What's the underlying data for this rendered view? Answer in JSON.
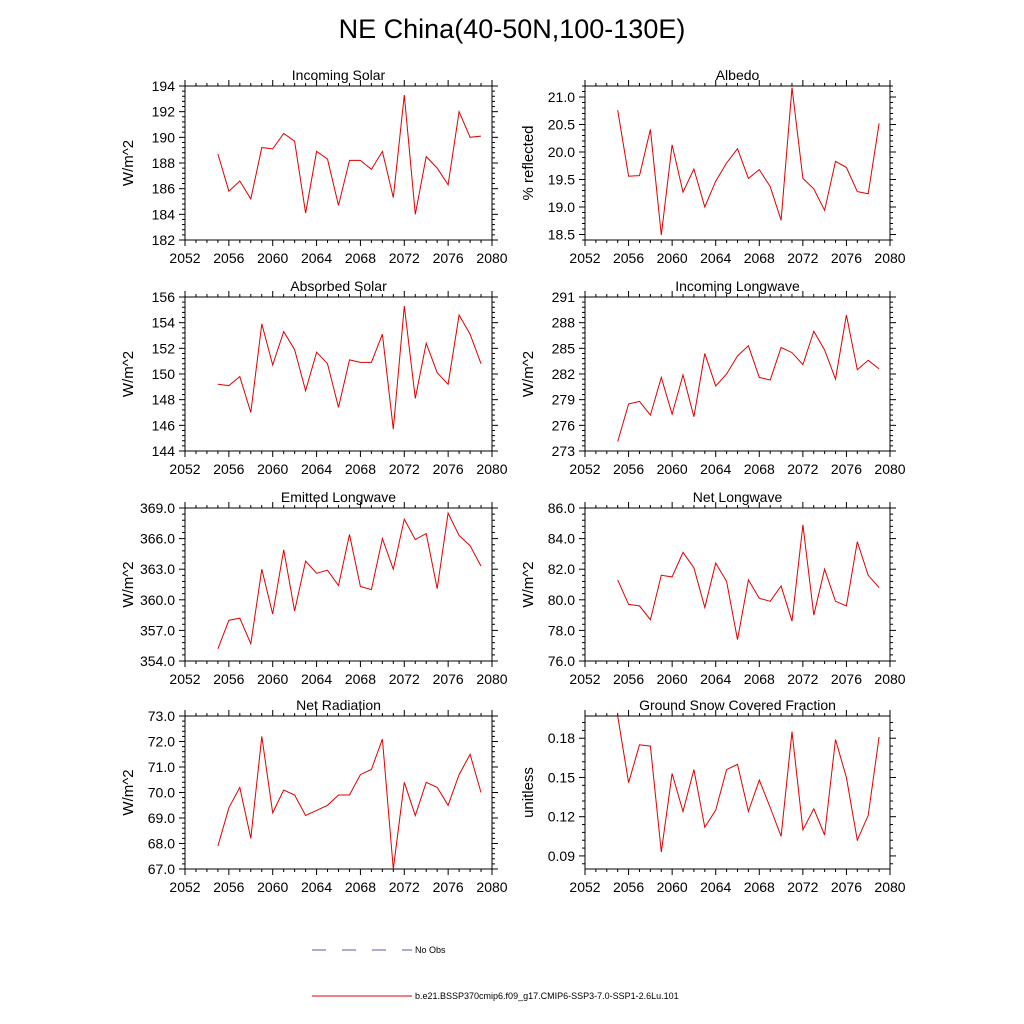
{
  "main_title": "NE China(40-50N,100-130E)",
  "legend": [
    {
      "label": "No Obs",
      "color": "#5a5aa8",
      "style": "dashed"
    },
    {
      "label": "b.e21.BSSP370cmip6.f09_g17.CMIP6-SSP3-7.0-SSP1-2.6Lu.101",
      "color": "#e00000",
      "style": "solid"
    }
  ],
  "colors": {
    "series": "#e00000",
    "axis": "#000000"
  },
  "chart_data": [
    {
      "type": "line",
      "title": "Incoming Solar",
      "ylabel": "W/m^2",
      "xlim": [
        2052,
        2080
      ],
      "ylim": [
        182,
        194
      ],
      "x_ticks": [
        "2052",
        "2056",
        "2060",
        "2064",
        "2068",
        "2072",
        "2076",
        "2080"
      ],
      "y_ticks": [
        "182",
        "184",
        "186",
        "188",
        "190",
        "192",
        "194"
      ],
      "x": [
        2055,
        2056,
        2057,
        2058,
        2059,
        2060,
        2061,
        2062,
        2063,
        2064,
        2065,
        2066,
        2067,
        2068,
        2069,
        2070,
        2071,
        2072,
        2073,
        2074,
        2075,
        2076,
        2077,
        2078,
        2079
      ],
      "values": [
        188.7,
        185.8,
        186.6,
        185.2,
        189.2,
        189.1,
        190.3,
        189.7,
        184.1,
        188.9,
        188.3,
        184.7,
        188.2,
        188.2,
        187.5,
        188.9,
        185.3,
        193.3,
        184.0,
        188.5,
        187.6,
        186.3,
        192.0,
        190.0,
        190.1
      ]
    },
    {
      "type": "line",
      "title": "Albedo",
      "ylabel": "% reflected",
      "xlim": [
        2052,
        2080
      ],
      "ylim": [
        18.4,
        21.2
      ],
      "x_ticks": [
        "2052",
        "2056",
        "2060",
        "2064",
        "2068",
        "2072",
        "2076",
        "2080"
      ],
      "y_ticks": [
        "18.5",
        "19.0",
        "19.5",
        "20.0",
        "20.5",
        "21.0"
      ],
      "x": [
        2055,
        2056,
        2057,
        2058,
        2059,
        2060,
        2061,
        2062,
        2063,
        2064,
        2065,
        2066,
        2067,
        2068,
        2069,
        2070,
        2071,
        2072,
        2073,
        2074,
        2075,
        2076,
        2077,
        2078,
        2079
      ],
      "values": [
        20.76,
        19.56,
        19.57,
        20.41,
        18.49,
        20.13,
        19.27,
        19.69,
        19.0,
        19.47,
        19.8,
        20.06,
        19.52,
        19.68,
        19.37,
        18.76,
        21.17,
        19.52,
        19.33,
        18.94,
        19.83,
        19.72,
        19.28,
        19.24,
        20.52
      ]
    },
    {
      "type": "line",
      "title": "Absorbed Solar",
      "ylabel": "W/m^2",
      "xlim": [
        2052,
        2080
      ],
      "ylim": [
        144,
        156
      ],
      "x_ticks": [
        "2052",
        "2056",
        "2060",
        "2064",
        "2068",
        "2072",
        "2076",
        "2080"
      ],
      "y_ticks": [
        "144",
        "146",
        "148",
        "150",
        "152",
        "154",
        "156"
      ],
      "x": [
        2055,
        2056,
        2057,
        2058,
        2059,
        2060,
        2061,
        2062,
        2063,
        2064,
        2065,
        2066,
        2067,
        2068,
        2069,
        2070,
        2071,
        2072,
        2073,
        2074,
        2075,
        2076,
        2077,
        2078,
        2079
      ],
      "values": [
        149.2,
        149.1,
        149.8,
        147.0,
        153.9,
        150.7,
        153.3,
        151.9,
        148.7,
        151.7,
        150.8,
        147.4,
        151.1,
        150.9,
        150.9,
        153.1,
        145.7,
        155.3,
        148.1,
        152.4,
        150.1,
        149.2,
        154.6,
        153.1,
        150.8
      ]
    },
    {
      "type": "line",
      "title": "Incoming Longwave",
      "ylabel": "W/m^2",
      "xlim": [
        2052,
        2080
      ],
      "ylim": [
        273,
        291
      ],
      "x_ticks": [
        "2052",
        "2056",
        "2060",
        "2064",
        "2068",
        "2072",
        "2076",
        "2080"
      ],
      "y_ticks": [
        "273",
        "276",
        "279",
        "282",
        "285",
        "288",
        "291"
      ],
      "x": [
        2055,
        2056,
        2057,
        2058,
        2059,
        2060,
        2061,
        2062,
        2063,
        2064,
        2065,
        2066,
        2067,
        2068,
        2069,
        2070,
        2071,
        2072,
        2073,
        2074,
        2075,
        2076,
        2077,
        2078,
        2079
      ],
      "values": [
        274.1,
        278.5,
        278.8,
        277.2,
        281.6,
        277.3,
        281.9,
        277.0,
        284.4,
        280.6,
        282.0,
        284.1,
        285.3,
        281.6,
        281.3,
        285.1,
        284.5,
        283.1,
        287.0,
        284.8,
        281.4,
        288.9,
        282.5,
        283.6,
        282.6
      ]
    },
    {
      "type": "line",
      "title": "Emitted Longwave",
      "ylabel": "W/m^2",
      "xlim": [
        2052,
        2080
      ],
      "ylim": [
        354,
        369
      ],
      "x_ticks": [
        "2052",
        "2056",
        "2060",
        "2064",
        "2068",
        "2072",
        "2076",
        "2080"
      ],
      "y_ticks": [
        "354.0",
        "357.0",
        "360.0",
        "363.0",
        "366.0",
        "369.0"
      ],
      "x": [
        2055,
        2056,
        2057,
        2058,
        2059,
        2060,
        2061,
        2062,
        2063,
        2064,
        2065,
        2066,
        2067,
        2068,
        2069,
        2070,
        2071,
        2072,
        2073,
        2074,
        2075,
        2076,
        2077,
        2078,
        2079
      ],
      "values": [
        355.2,
        358.0,
        358.2,
        355.7,
        363.0,
        358.6,
        364.9,
        358.9,
        363.8,
        362.6,
        362.9,
        361.4,
        366.4,
        361.3,
        361.0,
        366.0,
        363.0,
        367.9,
        365.9,
        366.5,
        361.1,
        368.5,
        366.3,
        365.3,
        363.3
      ]
    },
    {
      "type": "line",
      "title": "Net Longwave",
      "ylabel": "W/m^2",
      "xlim": [
        2052,
        2080
      ],
      "ylim": [
        76,
        86
      ],
      "x_ticks": [
        "2052",
        "2056",
        "2060",
        "2064",
        "2068",
        "2072",
        "2076",
        "2080"
      ],
      "y_ticks": [
        "76.0",
        "78.0",
        "80.0",
        "82.0",
        "84.0",
        "86.0"
      ],
      "x": [
        2055,
        2056,
        2057,
        2058,
        2059,
        2060,
        2061,
        2062,
        2063,
        2064,
        2065,
        2066,
        2067,
        2068,
        2069,
        2070,
        2071,
        2072,
        2073,
        2074,
        2075,
        2076,
        2077,
        2078,
        2079
      ],
      "values": [
        81.3,
        79.7,
        79.6,
        78.7,
        81.6,
        81.5,
        83.1,
        82.1,
        79.5,
        82.4,
        81.2,
        77.4,
        81.3,
        80.1,
        79.9,
        80.9,
        78.6,
        84.9,
        79.0,
        82.0,
        79.9,
        79.6,
        83.8,
        81.6,
        80.8
      ]
    },
    {
      "type": "line",
      "title": "Net Radiation",
      "ylabel": "W/m^2",
      "xlim": [
        2052,
        2080
      ],
      "ylim": [
        67,
        73
      ],
      "x_ticks": [
        "2052",
        "2056",
        "2060",
        "2064",
        "2068",
        "2072",
        "2076",
        "2080"
      ],
      "y_ticks": [
        "67.0",
        "68.0",
        "69.0",
        "70.0",
        "71.0",
        "72.0",
        "73.0"
      ],
      "x": [
        2055,
        2056,
        2057,
        2058,
        2059,
        2060,
        2061,
        2062,
        2063,
        2064,
        2065,
        2066,
        2067,
        2068,
        2069,
        2070,
        2071,
        2072,
        2073,
        2074,
        2075,
        2076,
        2077,
        2078,
        2079
      ],
      "values": [
        67.9,
        69.4,
        70.2,
        68.2,
        72.2,
        69.2,
        70.1,
        69.9,
        69.1,
        69.3,
        69.5,
        69.9,
        69.9,
        70.7,
        70.9,
        72.1,
        67.0,
        70.4,
        69.1,
        70.4,
        70.2,
        69.5,
        70.7,
        71.5,
        70.0
      ]
    },
    {
      "type": "line",
      "title": "Ground Snow Covered Fraction",
      "ylabel": "unitless",
      "xlim": [
        2052,
        2080
      ],
      "ylim": [
        0.08,
        0.197
      ],
      "x_ticks": [
        "2052",
        "2056",
        "2060",
        "2064",
        "2068",
        "2072",
        "2076",
        "2080"
      ],
      "y_ticks": [
        "0.09",
        "0.12",
        "0.15",
        "0.18"
      ],
      "x": [
        2055,
        2056,
        2057,
        2058,
        2059,
        2060,
        2061,
        2062,
        2063,
        2064,
        2065,
        2066,
        2067,
        2068,
        2069,
        2070,
        2071,
        2072,
        2073,
        2074,
        2075,
        2076,
        2077,
        2078,
        2079
      ],
      "values": [
        0.197,
        0.146,
        0.175,
        0.174,
        0.093,
        0.153,
        0.124,
        0.156,
        0.112,
        0.125,
        0.156,
        0.16,
        0.124,
        0.148,
        0.127,
        0.105,
        0.185,
        0.11,
        0.126,
        0.106,
        0.179,
        0.15,
        0.102,
        0.121,
        0.181
      ]
    }
  ]
}
